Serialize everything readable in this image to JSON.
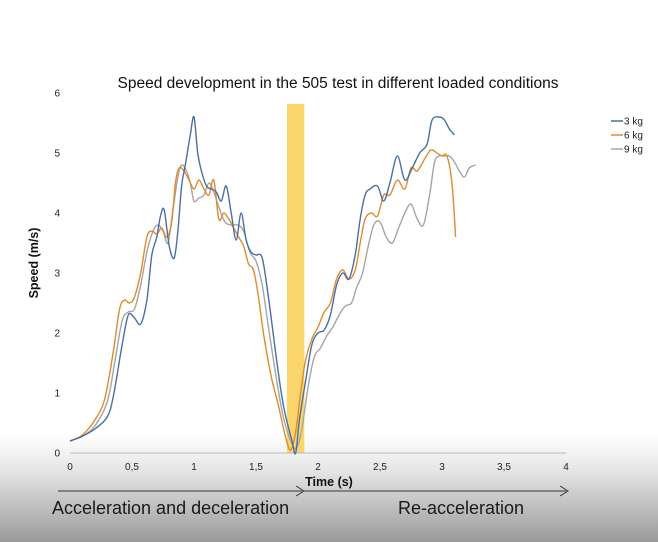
{
  "chart_data": {
    "type": "line",
    "title": "Speed development in the 505 test in different loaded conditions",
    "xlabel": "Time (s)",
    "ylabel": "Speed (m/s)",
    "xlim": [
      0,
      4
    ],
    "ylim": [
      0,
      6
    ],
    "x_ticks": [
      "0",
      "0,5",
      "1",
      "1,5",
      "2",
      "2,5",
      "3",
      "3,5",
      "4"
    ],
    "y_ticks": [
      "0",
      "1",
      "2",
      "3",
      "4",
      "5",
      "6"
    ],
    "grid": false,
    "legend_position": "top-right",
    "highlight_band": {
      "x_start": 1.75,
      "x_end": 1.89,
      "color": "#f9d56b"
    },
    "series": [
      {
        "name": "3 kg",
        "color": "#4a6fa5",
        "points": [
          [
            0,
            0.2
          ],
          [
            0.1,
            0.28
          ],
          [
            0.2,
            0.4
          ],
          [
            0.3,
            0.6
          ],
          [
            0.35,
            0.95
          ],
          [
            0.42,
            1.8
          ],
          [
            0.47,
            2.3
          ],
          [
            0.52,
            2.25
          ],
          [
            0.57,
            2.15
          ],
          [
            0.62,
            2.55
          ],
          [
            0.66,
            3.3
          ],
          [
            0.7,
            3.6
          ],
          [
            0.73,
            3.95
          ],
          [
            0.76,
            4.05
          ],
          [
            0.8,
            3.45
          ],
          [
            0.84,
            3.25
          ],
          [
            0.87,
            3.7
          ],
          [
            0.9,
            4.45
          ],
          [
            0.93,
            4.8
          ],
          [
            0.97,
            5.3
          ],
          [
            1.0,
            5.6
          ],
          [
            1.03,
            5.0
          ],
          [
            1.06,
            4.7
          ],
          [
            1.1,
            4.45
          ],
          [
            1.14,
            4.4
          ],
          [
            1.18,
            4.35
          ],
          [
            1.22,
            4.2
          ],
          [
            1.26,
            4.45
          ],
          [
            1.3,
            4.0
          ],
          [
            1.34,
            3.55
          ],
          [
            1.38,
            4.0
          ],
          [
            1.42,
            3.55
          ],
          [
            1.46,
            3.35
          ],
          [
            1.5,
            3.3
          ],
          [
            1.55,
            3.25
          ],
          [
            1.6,
            2.6
          ],
          [
            1.66,
            1.65
          ],
          [
            1.72,
            0.8
          ],
          [
            1.79,
            0.2
          ],
          [
            1.82,
            0.0
          ],
          [
            1.85,
            0.55
          ],
          [
            1.9,
            1.2
          ],
          [
            1.95,
            1.8
          ],
          [
            2.0,
            2.0
          ],
          [
            2.05,
            2.05
          ],
          [
            2.1,
            2.3
          ],
          [
            2.15,
            2.8
          ],
          [
            2.2,
            3.0
          ],
          [
            2.25,
            2.9
          ],
          [
            2.3,
            3.3
          ],
          [
            2.34,
            3.9
          ],
          [
            2.38,
            4.3
          ],
          [
            2.42,
            4.4
          ],
          [
            2.48,
            4.45
          ],
          [
            2.53,
            4.2
          ],
          [
            2.58,
            4.5
          ],
          [
            2.64,
            4.95
          ],
          [
            2.7,
            4.55
          ],
          [
            2.76,
            4.75
          ],
          [
            2.82,
            5.0
          ],
          [
            2.88,
            5.15
          ],
          [
            2.92,
            5.55
          ],
          [
            2.98,
            5.6
          ],
          [
            3.02,
            5.55
          ],
          [
            3.06,
            5.4
          ],
          [
            3.1,
            5.3
          ]
        ]
      },
      {
        "name": "6 kg",
        "color": "#e08b2e",
        "points": [
          [
            0,
            0.2
          ],
          [
            0.1,
            0.3
          ],
          [
            0.2,
            0.55
          ],
          [
            0.28,
            0.9
          ],
          [
            0.35,
            1.7
          ],
          [
            0.4,
            2.4
          ],
          [
            0.44,
            2.55
          ],
          [
            0.48,
            2.5
          ],
          [
            0.52,
            2.6
          ],
          [
            0.57,
            3.0
          ],
          [
            0.62,
            3.6
          ],
          [
            0.66,
            3.7
          ],
          [
            0.7,
            3.65
          ],
          [
            0.74,
            3.75
          ],
          [
            0.78,
            3.6
          ],
          [
            0.82,
            3.85
          ],
          [
            0.85,
            4.5
          ],
          [
            0.88,
            4.75
          ],
          [
            0.92,
            4.7
          ],
          [
            0.96,
            4.55
          ],
          [
            1.0,
            4.4
          ],
          [
            1.04,
            4.55
          ],
          [
            1.08,
            4.4
          ],
          [
            1.12,
            4.3
          ],
          [
            1.16,
            4.55
          ],
          [
            1.2,
            3.9
          ],
          [
            1.24,
            4.0
          ],
          [
            1.28,
            3.9
          ],
          [
            1.32,
            3.75
          ],
          [
            1.36,
            3.6
          ],
          [
            1.4,
            3.45
          ],
          [
            1.44,
            3.15
          ],
          [
            1.48,
            3.05
          ],
          [
            1.52,
            2.6
          ],
          [
            1.56,
            2.0
          ],
          [
            1.62,
            1.3
          ],
          [
            1.68,
            0.8
          ],
          [
            1.74,
            0.25
          ],
          [
            1.78,
            0.05
          ],
          [
            1.82,
            0.35
          ],
          [
            1.86,
            1.0
          ],
          [
            1.9,
            1.55
          ],
          [
            1.95,
            1.9
          ],
          [
            2.0,
            2.1
          ],
          [
            2.05,
            2.35
          ],
          [
            2.1,
            2.5
          ],
          [
            2.15,
            2.9
          ],
          [
            2.2,
            3.05
          ],
          [
            2.25,
            2.9
          ],
          [
            2.3,
            3.05
          ],
          [
            2.34,
            3.5
          ],
          [
            2.38,
            3.9
          ],
          [
            2.43,
            4.0
          ],
          [
            2.48,
            3.95
          ],
          [
            2.53,
            4.3
          ],
          [
            2.58,
            4.3
          ],
          [
            2.64,
            4.55
          ],
          [
            2.7,
            4.4
          ],
          [
            2.75,
            4.75
          ],
          [
            2.8,
            4.7
          ],
          [
            2.86,
            4.9
          ],
          [
            2.91,
            5.05
          ],
          [
            2.96,
            5.0
          ],
          [
            3.0,
            4.95
          ],
          [
            3.04,
            4.95
          ],
          [
            3.08,
            4.5
          ],
          [
            3.11,
            3.6
          ]
        ]
      },
      {
        "name": "9 kg",
        "color": "#a5a5a5",
        "points": [
          [
            0,
            0.2
          ],
          [
            0.1,
            0.28
          ],
          [
            0.2,
            0.45
          ],
          [
            0.3,
            0.85
          ],
          [
            0.36,
            1.5
          ],
          [
            0.42,
            2.2
          ],
          [
            0.47,
            2.35
          ],
          [
            0.52,
            2.4
          ],
          [
            0.57,
            2.8
          ],
          [
            0.62,
            3.35
          ],
          [
            0.67,
            3.7
          ],
          [
            0.71,
            3.8
          ],
          [
            0.75,
            3.7
          ],
          [
            0.79,
            3.5
          ],
          [
            0.83,
            4.05
          ],
          [
            0.87,
            4.6
          ],
          [
            0.9,
            4.8
          ],
          [
            0.94,
            4.7
          ],
          [
            0.97,
            4.5
          ],
          [
            1.0,
            4.2
          ],
          [
            1.04,
            4.25
          ],
          [
            1.08,
            4.3
          ],
          [
            1.12,
            4.5
          ],
          [
            1.16,
            4.35
          ],
          [
            1.2,
            4.1
          ],
          [
            1.25,
            3.85
          ],
          [
            1.3,
            3.8
          ],
          [
            1.35,
            3.8
          ],
          [
            1.4,
            3.7
          ],
          [
            1.45,
            3.35
          ],
          [
            1.5,
            3.2
          ],
          [
            1.55,
            2.8
          ],
          [
            1.6,
            2.1
          ],
          [
            1.66,
            1.3
          ],
          [
            1.72,
            0.6
          ],
          [
            1.79,
            0.15
          ],
          [
            1.83,
            0.1
          ],
          [
            1.87,
            0.4
          ],
          [
            1.92,
            1.1
          ],
          [
            1.97,
            1.6
          ],
          [
            2.02,
            1.75
          ],
          [
            2.07,
            1.95
          ],
          [
            2.12,
            2.1
          ],
          [
            2.17,
            2.3
          ],
          [
            2.22,
            2.45
          ],
          [
            2.27,
            2.5
          ],
          [
            2.31,
            2.75
          ],
          [
            2.36,
            3.0
          ],
          [
            2.4,
            3.4
          ],
          [
            2.45,
            3.8
          ],
          [
            2.5,
            3.85
          ],
          [
            2.55,
            3.6
          ],
          [
            2.6,
            3.5
          ],
          [
            2.65,
            3.75
          ],
          [
            2.7,
            4.0
          ],
          [
            2.75,
            4.15
          ],
          [
            2.8,
            3.9
          ],
          [
            2.85,
            3.8
          ],
          [
            2.9,
            4.3
          ],
          [
            2.94,
            4.85
          ],
          [
            2.98,
            4.95
          ],
          [
            3.02,
            4.95
          ],
          [
            3.06,
            4.95
          ],
          [
            3.1,
            4.85
          ],
          [
            3.14,
            4.7
          ],
          [
            3.18,
            4.6
          ],
          [
            3.22,
            4.75
          ],
          [
            3.27,
            4.8
          ]
        ]
      }
    ]
  },
  "captions": {
    "left": "Acceleration and deceleration",
    "right": "Re-acceleration"
  }
}
